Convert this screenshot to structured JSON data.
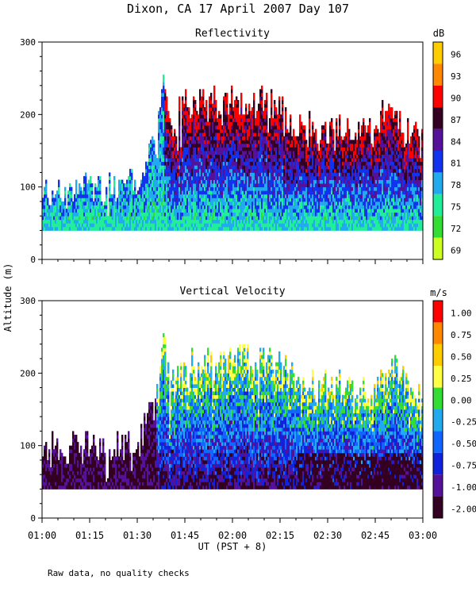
{
  "figure": {
    "title": "Dixon, CA 17 April 2007  Day 107",
    "ylabel": "Altitude (m)",
    "xlabel": "UT  (PST + 8)",
    "note": "Raw data, no quality checks",
    "x_ticks": [
      "01:00",
      "01:15",
      "01:30",
      "01:45",
      "02:00",
      "02:15",
      "02:30",
      "02:45",
      "03:00"
    ],
    "colors": {
      "background": "#ffffff",
      "axis": "#000000"
    }
  },
  "chart_data": [
    {
      "type": "heatmap",
      "title": "Reflectivity",
      "xlabel": "UT  (PST + 8)",
      "ylabel": "Altitude (m)",
      "xlim": [
        "01:00",
        "03:00"
      ],
      "ylim": [
        0,
        300
      ],
      "y_ticks": [
        0,
        100,
        200,
        300
      ],
      "colorbar": {
        "unit": "dB",
        "labels": [
          "96",
          "93",
          "90",
          "87",
          "84",
          "81",
          "78",
          "75",
          "72",
          "69"
        ],
        "colors": [
          "#ffcc00",
          "#ff8800",
          "#ff0000",
          "#330022",
          "#551199",
          "#1133ee",
          "#22aaee",
          "#22ee99",
          "#33dd33",
          "#ccff22"
        ]
      },
      "echo_top": {
        "time_min": [
          0,
          10,
          20,
          30,
          36,
          38,
          40,
          45,
          50,
          55,
          60,
          65,
          70,
          75,
          80,
          85,
          90,
          95,
          100,
          105,
          110,
          115,
          120
        ],
        "altitude_m": [
          95,
          95,
          95,
          100,
          160,
          255,
          170,
          215,
          215,
          210,
          215,
          215,
          215,
          215,
          180,
          180,
          180,
          180,
          175,
          175,
          215,
          170,
          160
        ]
      },
      "echo_base_m": 40
    },
    {
      "type": "heatmap",
      "title": "Vertical Velocity",
      "xlabel": "UT  (PST + 8)",
      "ylabel": "Altitude (m)",
      "xlim": [
        "01:00",
        "03:00"
      ],
      "ylim": [
        0,
        300
      ],
      "y_ticks": [
        0,
        100,
        200,
        300
      ],
      "colorbar": {
        "unit": "m/s",
        "labels": [
          "1.00",
          "0.75",
          "0.50",
          "0.25",
          "0.00",
          "-0.25",
          "-0.50",
          "-0.75",
          "-1.00",
          "-2.00"
        ],
        "colors": [
          "#ff0000",
          "#ff8800",
          "#ffcc00",
          "#ffff44",
          "#33dd33",
          "#22aaee",
          "#1166ff",
          "#1122dd",
          "#551199",
          "#330022"
        ]
      },
      "echo_top": {
        "time_min": [
          0,
          10,
          20,
          30,
          36,
          38,
          40,
          45,
          50,
          55,
          60,
          65,
          70,
          75,
          80,
          85,
          90,
          95,
          100,
          105,
          110,
          115,
          120
        ],
        "altitude_m": [
          95,
          95,
          95,
          100,
          160,
          255,
          170,
          215,
          215,
          210,
          215,
          215,
          215,
          215,
          180,
          180,
          180,
          180,
          175,
          175,
          215,
          170,
          160
        ]
      },
      "echo_base_m": 40
    }
  ]
}
